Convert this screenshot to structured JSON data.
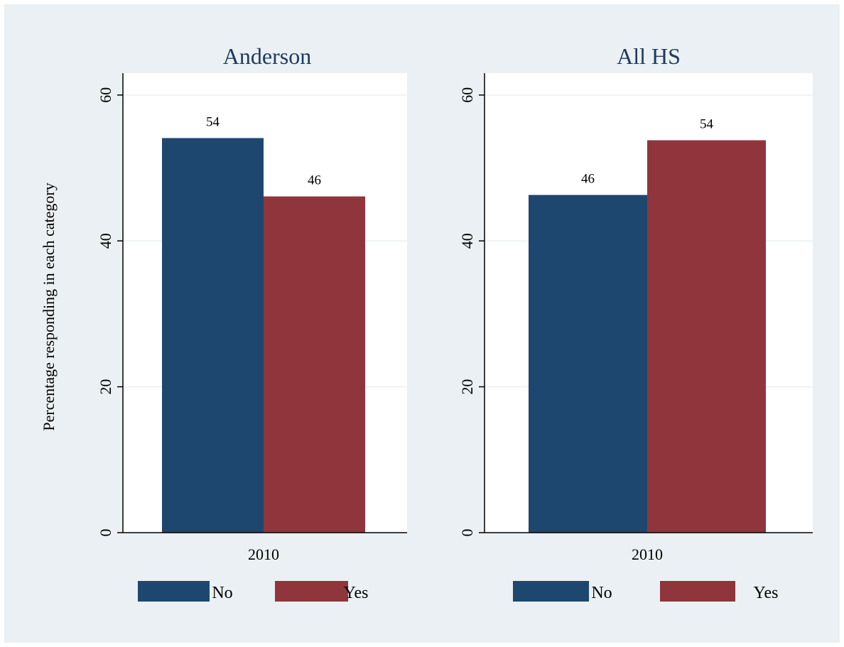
{
  "chart_data": {
    "type": "bar",
    "ylabel": "Percentage responding in each category",
    "ylim": [
      0,
      63
    ],
    "yticks": [
      0,
      20,
      40,
      60
    ],
    "grid": true,
    "legend_position": "bottom",
    "series": [
      {
        "name": "No",
        "color": "#1e4770"
      },
      {
        "name": "Yes",
        "color": "#90353c"
      }
    ],
    "panels": [
      {
        "title": "Anderson",
        "category": "2010",
        "values": [
          54.1,
          46.1
        ],
        "labels": [
          "54",
          "46"
        ]
      },
      {
        "title": "All HS",
        "category": "2010",
        "values": [
          46.3,
          53.8
        ],
        "labels": [
          "46",
          "54"
        ]
      }
    ]
  },
  "colors": {
    "background": "#eaf0f3",
    "plot_area": "#ffffff",
    "gridline": "#eaf0f3",
    "title": "#1e3a5f",
    "text": "#000000"
  }
}
